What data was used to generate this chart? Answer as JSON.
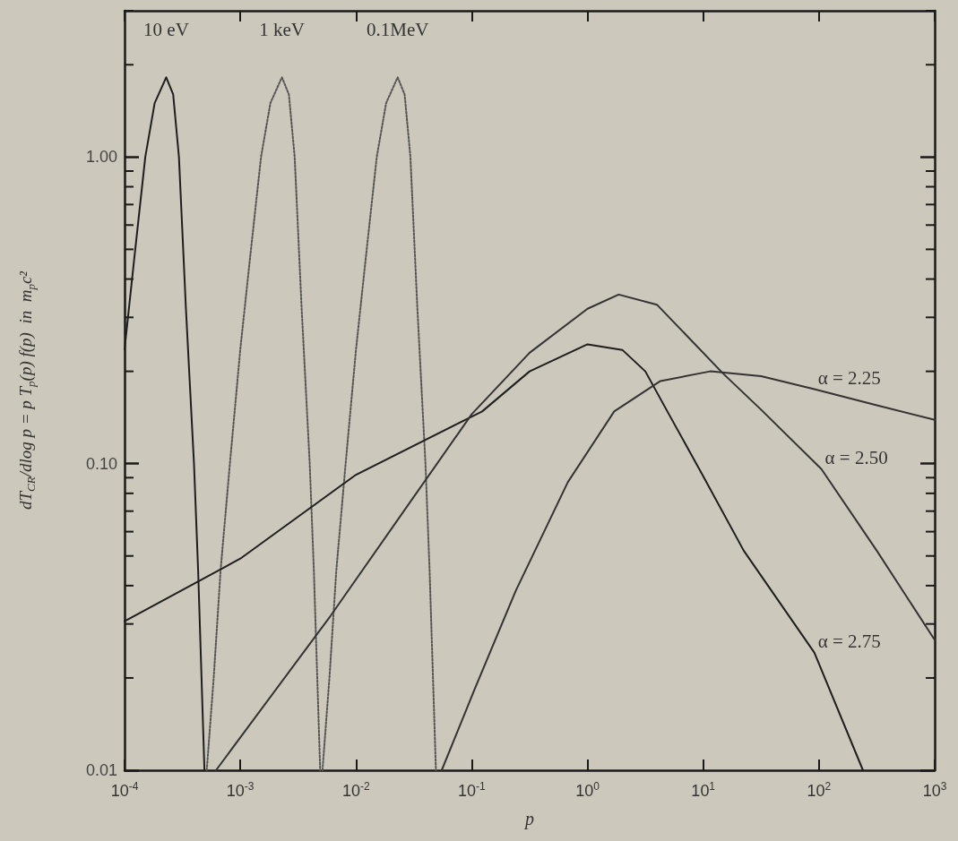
{
  "chart_data": {
    "type": "line",
    "xlabel": "p",
    "ylabel": "dT$_{CR}$/dlog p = p T$_{p}$(p) f(p)  in  m$_{p}$c²",
    "log": "xy",
    "grid": false,
    "marker": "none",
    "line_style": "solid",
    "xlim": [
      0.0001,
      1000
    ],
    "ylim": [
      0.01,
      3
    ],
    "xticks": [
      {
        "value": 0.0001,
        "label": "10$^{-4}$"
      },
      {
        "value": 0.001,
        "label": "10$^{-3}$"
      },
      {
        "value": 0.01,
        "label": "10$^{-2}$"
      },
      {
        "value": 0.1,
        "label": "10$^{-1}$"
      },
      {
        "value": 1,
        "label": "10$^{0}$"
      },
      {
        "value": 10,
        "label": "10$^{1}$"
      },
      {
        "value": 100,
        "label": "10$^{2}$"
      },
      {
        "value": 1000,
        "label": "10$^{3}$"
      }
    ],
    "yticks": [
      {
        "value": 0.01,
        "label": "0.01"
      },
      {
        "value": 0.1,
        "label": "0.10"
      },
      {
        "value": 1,
        "label": "1.00"
      }
    ],
    "series": [
      {
        "color": "#1e1e1e",
        "x": [
          0.0001,
          0.00012,
          0.000151,
          0.000182,
          0.000229,
          0.000263,
          0.000295,
          0.000339,
          0.000398,
          0.000432,
          0.00049
        ],
        "values": [
          0.236,
          0.45,
          1.0,
          1.5,
          1.82,
          1.6,
          1.0,
          0.32,
          0.1,
          0.045,
          0.01
        ]
      },
      {
        "color": "#555555",
        "line_style": "dotted",
        "x": [
          0.000513,
          0.000589,
          0.000676,
          0.000813,
          0.001,
          0.0012,
          0.00151,
          0.00182,
          0.00229,
          0.00263,
          0.00295,
          0.00339,
          0.00398,
          0.00432,
          0.0049
        ],
        "values": [
          0.01,
          0.02,
          0.045,
          0.1,
          0.236,
          0.45,
          1.0,
          1.5,
          1.82,
          1.6,
          1.0,
          0.32,
          0.1,
          0.045,
          0.01
        ]
      },
      {
        "color": "#555555",
        "line_style": "dotted",
        "x": [
          0.00513,
          0.00589,
          0.00676,
          0.00813,
          0.01,
          0.012,
          0.0151,
          0.0182,
          0.0229,
          0.0263,
          0.0295,
          0.0339,
          0.0398,
          0.0432,
          0.049
        ],
        "values": [
          0.01,
          0.02,
          0.045,
          0.1,
          0.236,
          0.45,
          1.0,
          1.5,
          1.82,
          1.6,
          1.0,
          0.32,
          0.1,
          0.045,
          0.01
        ]
      },
      {
        "color": "#1e1e1e",
        "x": [
          0.0001,
          0.001,
          0.01,
          0.123,
          0.316,
          1,
          2,
          3.16,
          4.9,
          10,
          22.4,
          91.2,
          240
        ],
        "values": [
          0.0306,
          0.049,
          0.092,
          0.148,
          0.2,
          0.245,
          0.235,
          0.2,
          0.148,
          0.091,
          0.052,
          0.0242,
          0.01
        ]
      },
      {
        "color": "#333333",
        "x": [
          0.000617,
          0.00603,
          0.0316,
          0.1,
          0.316,
          1,
          1.86,
          3.98,
          14.8,
          31.6,
          105,
          316,
          1000
        ],
        "values": [
          0.01,
          0.0319,
          0.078,
          0.145,
          0.23,
          0.32,
          0.356,
          0.33,
          0.197,
          0.15,
          0.096,
          0.052,
          0.0266
        ]
      },
      {
        "color": "#333333",
        "x": [
          0.055,
          0.106,
          0.24,
          0.676,
          1.7,
          4.27,
          11.5,
          31.6,
          91.2,
          316,
          1000
        ],
        "values": [
          0.01,
          0.0184,
          0.0385,
          0.087,
          0.148,
          0.186,
          0.2,
          0.193,
          0.175,
          0.155,
          0.139
        ]
      }
    ],
    "annotations": [
      {
        "text": "10 eV",
        "x": 0.000229,
        "y": 1.82
      },
      {
        "text": "1 keV",
        "x": 0.00229,
        "y": 1.82
      },
      {
        "text": "0.1MeV",
        "x": 0.0229,
        "y": 1.82
      },
      {
        "text": "α = 2.25",
        "x": 91.2,
        "y": 0.175
      },
      {
        "text": "α = 2.50",
        "x": 105,
        "y": 0.096
      },
      {
        "text": "α = 2.75",
        "x": 91.2,
        "y": 0.0242
      }
    ]
  }
}
